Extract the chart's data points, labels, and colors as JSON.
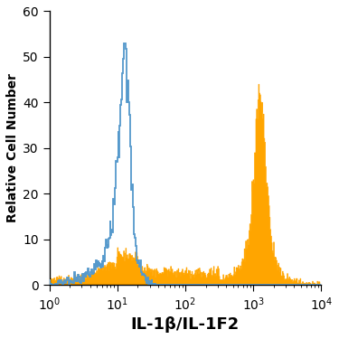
{
  "xlabel": "IL-1β/IL-1F2",
  "ylabel": "Relative Cell Number",
  "xlim_log": [
    0,
    4
  ],
  "ylim": [
    0,
    60
  ],
  "yticks": [
    0,
    10,
    20,
    30,
    40,
    50,
    60
  ],
  "blue_color": "#5599cc",
  "orange_color": "#FFA500",
  "background_color": "#ffffff",
  "xlabel_fontsize": 13,
  "ylabel_fontsize": 10,
  "tick_fontsize": 10,
  "n_bins": 400
}
